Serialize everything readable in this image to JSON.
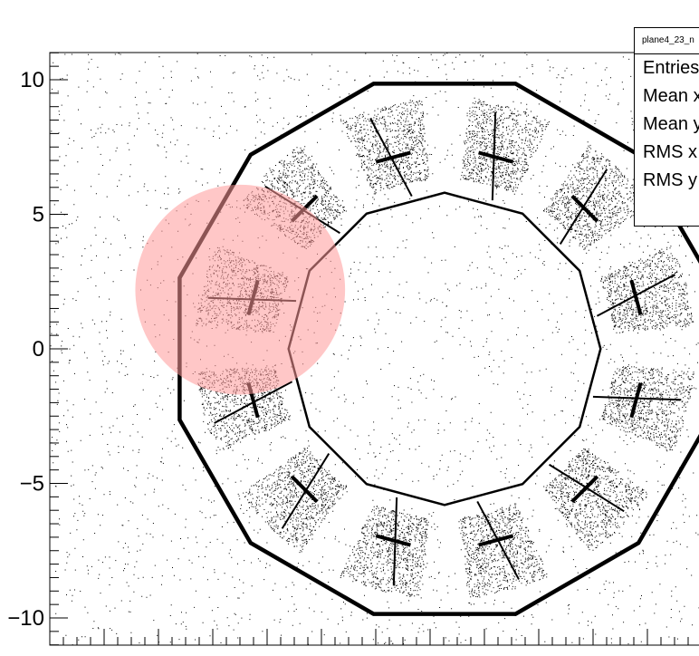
{
  "chart_data": {
    "type": "scatter",
    "title": "",
    "xlabel": "",
    "ylabel": "",
    "xlim": [
      -10.5,
      10.0
    ],
    "ylim": [
      -11.0,
      11.0
    ],
    "yticks": [
      10,
      5,
      0,
      -5,
      -10
    ],
    "ytick_labels": [
      "10",
      "5",
      "0",
      "−5",
      "−10"
    ],
    "grid": false,
    "marker_color": "#000000",
    "highlight": {
      "shape": "circle",
      "center": [
        -7.6,
        2.2
      ],
      "radius": 3.9,
      "color": "#ff9999",
      "opacity": 0.55
    },
    "geometry": {
      "symmetry": 12,
      "inner_radius": 5.8,
      "outer_radius": 10.2
    },
    "stats_box": {
      "title": "plane4_23_n",
      "rows": [
        "Entries",
        "Mean x",
        "Mean y",
        "RMS x",
        "RMS y"
      ]
    }
  }
}
